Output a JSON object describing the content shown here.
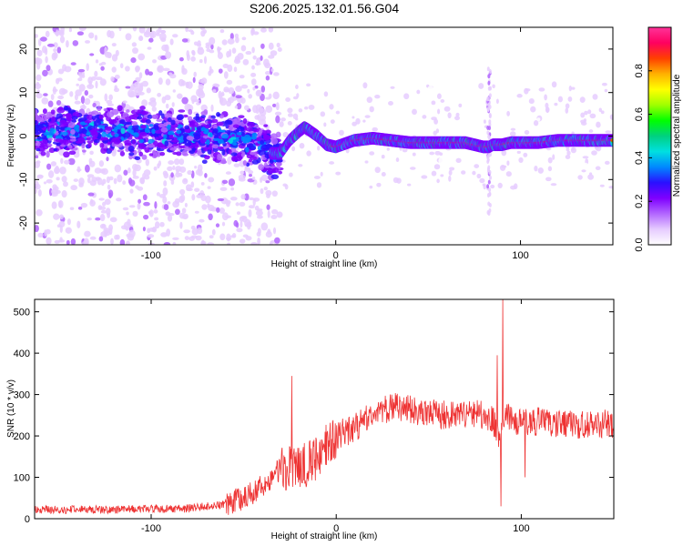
{
  "title": "S206.2025.132.01.56.G04",
  "chart_data": [
    {
      "type": "heatmap",
      "xlabel": "Height of straight line (km)",
      "ylabel": "Frequency (Hz)",
      "xlim": [
        -163,
        150
      ],
      "ylim": [
        -25,
        25
      ],
      "xticks": [
        -100,
        0,
        100
      ],
      "yticks": [
        -20,
        -10,
        0,
        10,
        20
      ],
      "colorbar": {
        "label": "Normalized spectral amplitude",
        "range": [
          0,
          1
        ],
        "ticks": [
          0.0,
          0.2,
          0.4,
          0.6,
          0.8
        ],
        "tick_labels": [
          "0.0",
          "0.2",
          "0.4",
          "0.6",
          "0.8"
        ],
        "colors": [
          "#ffffff",
          "#e6ccff",
          "#b266ff",
          "#7f00ff",
          "#2a10ff",
          "#0088ff",
          "#00e0e0",
          "#00d080",
          "#00ff00",
          "#a0ff00",
          "#ffff00",
          "#ffb000",
          "#ff4000",
          "#ff0060",
          "#ff3399"
        ]
      },
      "ridge": {
        "x": [
          -163,
          -130,
          -100,
          -70,
          -50,
          -40,
          -35,
          -30,
          -25,
          -20,
          -17,
          -15,
          -10,
          -5,
          0,
          10,
          20,
          30,
          40,
          50,
          60,
          70,
          75,
          80,
          83,
          85,
          90,
          95,
          100,
          110,
          120,
          130,
          140,
          150
        ],
        "y": [
          1,
          1.5,
          0.5,
          0,
          -1,
          -2,
          -4,
          -4,
          -1,
          1,
          2,
          1.5,
          0,
          -2,
          -2.5,
          -1,
          -0.5,
          -1,
          -1.5,
          -1.5,
          -1.5,
          -1.5,
          -2,
          -2.5,
          -2.5,
          -2,
          -2,
          -1.5,
          -1.5,
          -1.5,
          -1,
          -1,
          -1,
          -1
        ]
      }
    },
    {
      "type": "line",
      "xlabel": "Height of straight line (km)",
      "ylabel": "SNR (10 * v/v)",
      "xlim": [
        -163,
        150
      ],
      "ylim": [
        0,
        530
      ],
      "xticks": [
        -100,
        0,
        100
      ],
      "yticks": [
        0,
        100,
        200,
        300,
        400,
        500
      ],
      "color": "#ee3333",
      "trend": {
        "x": [
          -163,
          -120,
          -80,
          -60,
          -50,
          -40,
          -30,
          -20,
          -10,
          -5,
          0,
          10,
          20,
          30,
          40,
          50,
          60,
          70,
          80,
          85,
          88,
          90,
          95,
          100,
          110,
          120,
          130,
          140,
          150
        ],
        "y": [
          22,
          22,
          25,
          35,
          50,
          80,
          120,
          120,
          150,
          180,
          200,
          220,
          250,
          270,
          265,
          255,
          250,
          255,
          250,
          240,
          180,
          250,
          240,
          235,
          235,
          230,
          225,
          230,
          230
        ]
      },
      "spikes": [
        {
          "x": -24,
          "y": 345
        },
        {
          "x": 87,
          "y": 395
        },
        {
          "x": 89,
          "y": 30
        },
        {
          "x": 90,
          "y": 530
        },
        {
          "x": 102,
          "y": 100
        }
      ]
    }
  ]
}
